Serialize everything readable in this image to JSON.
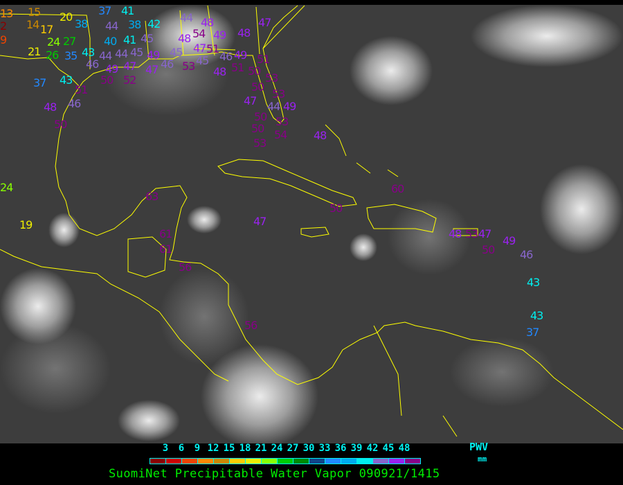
{
  "title": "SuomiNet Precipitable Water Vapor 090921/1415",
  "legend": {
    "variable": "PWV",
    "unit": "mm",
    "ticks": [
      "3",
      "6",
      "9",
      "12",
      "15",
      "18",
      "21",
      "24",
      "27",
      "30",
      "33",
      "36",
      "39",
      "42",
      "45",
      "48"
    ],
    "colors": [
      "#8b0000",
      "#cc0000",
      "#ee4400",
      "#ff8800",
      "#cc8800",
      "#ffcc00",
      "#eeee00",
      "#88ff00",
      "#00cc00",
      "#008a00",
      "#114488",
      "#2288ff",
      "#00aaee",
      "#00eeee",
      "#8866cc",
      "#9922ee",
      "#880088"
    ]
  },
  "map": {
    "coastline_color": "#ffff00",
    "background": "satellite infrared"
  },
  "stations": [
    "13",
    "2",
    "9",
    "15",
    "14",
    "17",
    "20",
    "24",
    "27",
    "21",
    "26",
    "35",
    "38",
    "37",
    "41",
    "44",
    "38",
    "42",
    "40",
    "41",
    "45",
    "43",
    "44",
    "45",
    "44",
    "47",
    "49",
    "46",
    "49",
    "52",
    "47",
    "46",
    "43",
    "37",
    "50",
    "51",
    "46",
    "48",
    "50",
    "44",
    "48",
    "54",
    "49",
    "51",
    "46",
    "48",
    "45",
    "53",
    "45",
    "47",
    "48",
    "51",
    "49",
    "47",
    "48",
    "51",
    "50",
    "53",
    "50",
    "53",
    "47",
    "44",
    "49",
    "50",
    "53",
    "50",
    "54",
    "53",
    "48",
    "60",
    "50",
    "63",
    "61",
    "61",
    "47",
    "56",
    "56",
    "48",
    "53",
    "47",
    "50",
    "49",
    "46",
    "43",
    "43",
    "37",
    "19",
    "24"
  ]
}
